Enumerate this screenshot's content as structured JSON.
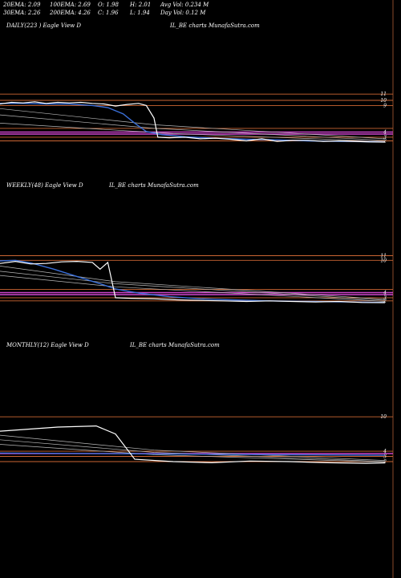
{
  "header": {
    "ema20": "20EMA: 2.09",
    "ema100": "100EMA: 2.69",
    "open": "O: 1.98",
    "high": "H: 2.01",
    "avgvol": "Avg Vol: 0.234  M",
    "ema30": "30EMA: 2.26",
    "ema200": "200EMA: 4.26",
    "close": "C: 1.96",
    "low": "L: 1.94",
    "dayvol": "Day Vol: 0.12  M"
  },
  "panels": [
    {
      "title": "DAILY(223                    ) Eagle  View  D",
      "caption": "IL_BE charts MunafaSutra.com"
    },
    {
      "title": "WEEKLY(48) Eagle  View  D",
      "caption": "IL_BE charts MunafaSutra.com"
    },
    {
      "title": "MONTHLY(12) Eagle  View  D",
      "caption": "IL_BE charts MunafaSutra.com"
    }
  ],
  "chart_data": [
    {
      "type": "line",
      "name": "daily",
      "yticks": [
        "11",
        "10",
        "9",
        "4",
        "3",
        "2"
      ],
      "ylim": [
        1.5,
        12
      ],
      "price": [
        [
          0,
          9.3
        ],
        [
          3,
          9.6
        ],
        [
          6,
          9.5
        ],
        [
          9,
          9.7
        ],
        [
          12,
          9.4
        ],
        [
          15,
          9.6
        ],
        [
          18,
          9.5
        ],
        [
          21,
          9.6
        ],
        [
          24,
          9.4
        ],
        [
          27,
          9.3
        ],
        [
          30,
          8.9
        ],
        [
          33,
          9.2
        ],
        [
          36,
          9.4
        ],
        [
          38,
          9.0
        ],
        [
          40,
          6.6
        ],
        [
          41,
          2.9
        ],
        [
          44,
          2.8
        ],
        [
          48,
          2.9
        ],
        [
          52,
          2.6
        ],
        [
          56,
          2.7
        ],
        [
          60,
          2.5
        ],
        [
          64,
          2.2
        ],
        [
          68,
          2.6
        ],
        [
          72,
          2.1
        ],
        [
          76,
          2.3
        ],
        [
          80,
          2.3
        ],
        [
          84,
          2.1
        ],
        [
          88,
          2.2
        ],
        [
          92,
          2.1
        ],
        [
          96,
          2.0
        ],
        [
          100,
          1.96
        ]
      ],
      "blue_ma": [
        [
          0,
          9.4
        ],
        [
          6,
          9.4
        ],
        [
          12,
          9.3
        ],
        [
          18,
          9.3
        ],
        [
          24,
          9.0
        ],
        [
          28,
          8.6
        ],
        [
          32,
          7.4
        ],
        [
          35,
          5.6
        ],
        [
          38,
          4.0
        ],
        [
          42,
          3.4
        ],
        [
          48,
          3.0
        ],
        [
          56,
          2.7
        ],
        [
          64,
          2.5
        ],
        [
          72,
          2.4
        ],
        [
          80,
          2.2
        ],
        [
          88,
          2.1
        ],
        [
          100,
          2.0
        ]
      ],
      "ma_thin": [
        [
          [
            0,
            7.2
          ],
          [
            40,
            4.6
          ],
          [
            100,
            2.3
          ]
        ],
        [
          [
            0,
            8.4
          ],
          [
            40,
            5.3
          ],
          [
            100,
            2.6
          ]
        ],
        [
          [
            0,
            5.6
          ],
          [
            45,
            3.6
          ],
          [
            100,
            2.1
          ]
        ]
      ],
      "hlines": [
        {
          "y": 11.2,
          "color": "#cc6633"
        },
        {
          "y": 10.0,
          "color": "#cc6633"
        },
        {
          "y": 9.0,
          "color": "#cc6633"
        },
        {
          "y": 4.6,
          "color": "#cc6633"
        },
        {
          "y": 3.9,
          "color": "#cc44cc"
        },
        {
          "y": 3.5,
          "color": "#cc44cc"
        },
        {
          "y": 2.9,
          "color": "#cc6633"
        },
        {
          "y": 2.2,
          "color": "#cc6633"
        }
      ]
    },
    {
      "type": "line",
      "name": "weekly",
      "yticks": [
        "11",
        "10",
        "4",
        "3",
        "2"
      ],
      "ylim": [
        1.5,
        12
      ],
      "price": [
        [
          0,
          9.5
        ],
        [
          4,
          9.9
        ],
        [
          8,
          9.4
        ],
        [
          12,
          9.5
        ],
        [
          16,
          9.8
        ],
        [
          20,
          9.9
        ],
        [
          24,
          9.7
        ],
        [
          26,
          8.4
        ],
        [
          28,
          9.7
        ],
        [
          30,
          2.9
        ],
        [
          34,
          2.8
        ],
        [
          40,
          2.7
        ],
        [
          46,
          2.5
        ],
        [
          52,
          2.4
        ],
        [
          58,
          2.3
        ],
        [
          64,
          2.2
        ],
        [
          70,
          2.3
        ],
        [
          76,
          2.2
        ],
        [
          82,
          2.1
        ],
        [
          88,
          2.2
        ],
        [
          94,
          2.0
        ],
        [
          100,
          1.96
        ]
      ],
      "blue_ma": [
        [
          0,
          10.0
        ],
        [
          4,
          10.1
        ],
        [
          8,
          9.6
        ],
        [
          14,
          8.4
        ],
        [
          20,
          7.0
        ],
        [
          26,
          5.6
        ],
        [
          30,
          4.6
        ],
        [
          36,
          3.8
        ],
        [
          44,
          3.1
        ],
        [
          52,
          2.7
        ],
        [
          60,
          2.5
        ],
        [
          70,
          2.3
        ],
        [
          80,
          2.2
        ],
        [
          90,
          2.1
        ],
        [
          100,
          2.0
        ]
      ],
      "ma_thin": [
        [
          [
            0,
            8.0
          ],
          [
            30,
            5.6
          ],
          [
            100,
            2.4
          ]
        ],
        [
          [
            0,
            7.2
          ],
          [
            30,
            5.0
          ],
          [
            100,
            2.2
          ]
        ],
        [
          [
            0,
            9.0
          ],
          [
            30,
            6.0
          ],
          [
            100,
            2.6
          ]
        ]
      ],
      "hlines": [
        {
          "y": 11.0,
          "color": "#cc6633"
        },
        {
          "y": 10.1,
          "color": "#cc6633"
        },
        {
          "y": 4.5,
          "color": "#cc6633"
        },
        {
          "y": 3.9,
          "color": "#cc44cc"
        },
        {
          "y": 3.5,
          "color": "#cc44cc"
        },
        {
          "y": 2.9,
          "color": "#cc6633"
        },
        {
          "y": 2.3,
          "color": "#cc6633"
        }
      ]
    },
    {
      "type": "line",
      "name": "monthly",
      "yticks": [
        "10",
        "4",
        "3",
        "2"
      ],
      "ylim": [
        1.5,
        11
      ],
      "price": [
        [
          0,
          7.5
        ],
        [
          15,
          8.2
        ],
        [
          25,
          8.4
        ],
        [
          30,
          7.0
        ],
        [
          35,
          2.6
        ],
        [
          45,
          2.2
        ],
        [
          55,
          2.0
        ],
        [
          65,
          2.3
        ],
        [
          75,
          2.2
        ],
        [
          85,
          2.0
        ],
        [
          95,
          1.9
        ],
        [
          100,
          1.96
        ]
      ],
      "blue_ma": [
        [
          0,
          3.7
        ],
        [
          100,
          3.3
        ]
      ],
      "ma_thin": [
        [
          [
            0,
            6.8
          ],
          [
            40,
            4.2
          ],
          [
            100,
            2.4
          ]
        ],
        [
          [
            0,
            6.0
          ],
          [
            40,
            3.8
          ],
          [
            100,
            2.2
          ]
        ],
        [
          [
            0,
            5.2
          ],
          [
            40,
            3.4
          ],
          [
            100,
            2.1
          ]
        ]
      ],
      "hlines": [
        {
          "y": 10.0,
          "color": "#cc6633"
        },
        {
          "y": 4.0,
          "color": "#cc6633"
        },
        {
          "y": 3.6,
          "color": "#cc44cc"
        },
        {
          "y": 3.1,
          "color": "#cc6633"
        },
        {
          "y": 2.2,
          "color": "#cc6633"
        }
      ]
    }
  ],
  "colors": {
    "price": "#ffffff",
    "blue_ma": "#3a6fd8",
    "ma_thin": "#b8b8b8",
    "vline": "#8a4a2a"
  }
}
